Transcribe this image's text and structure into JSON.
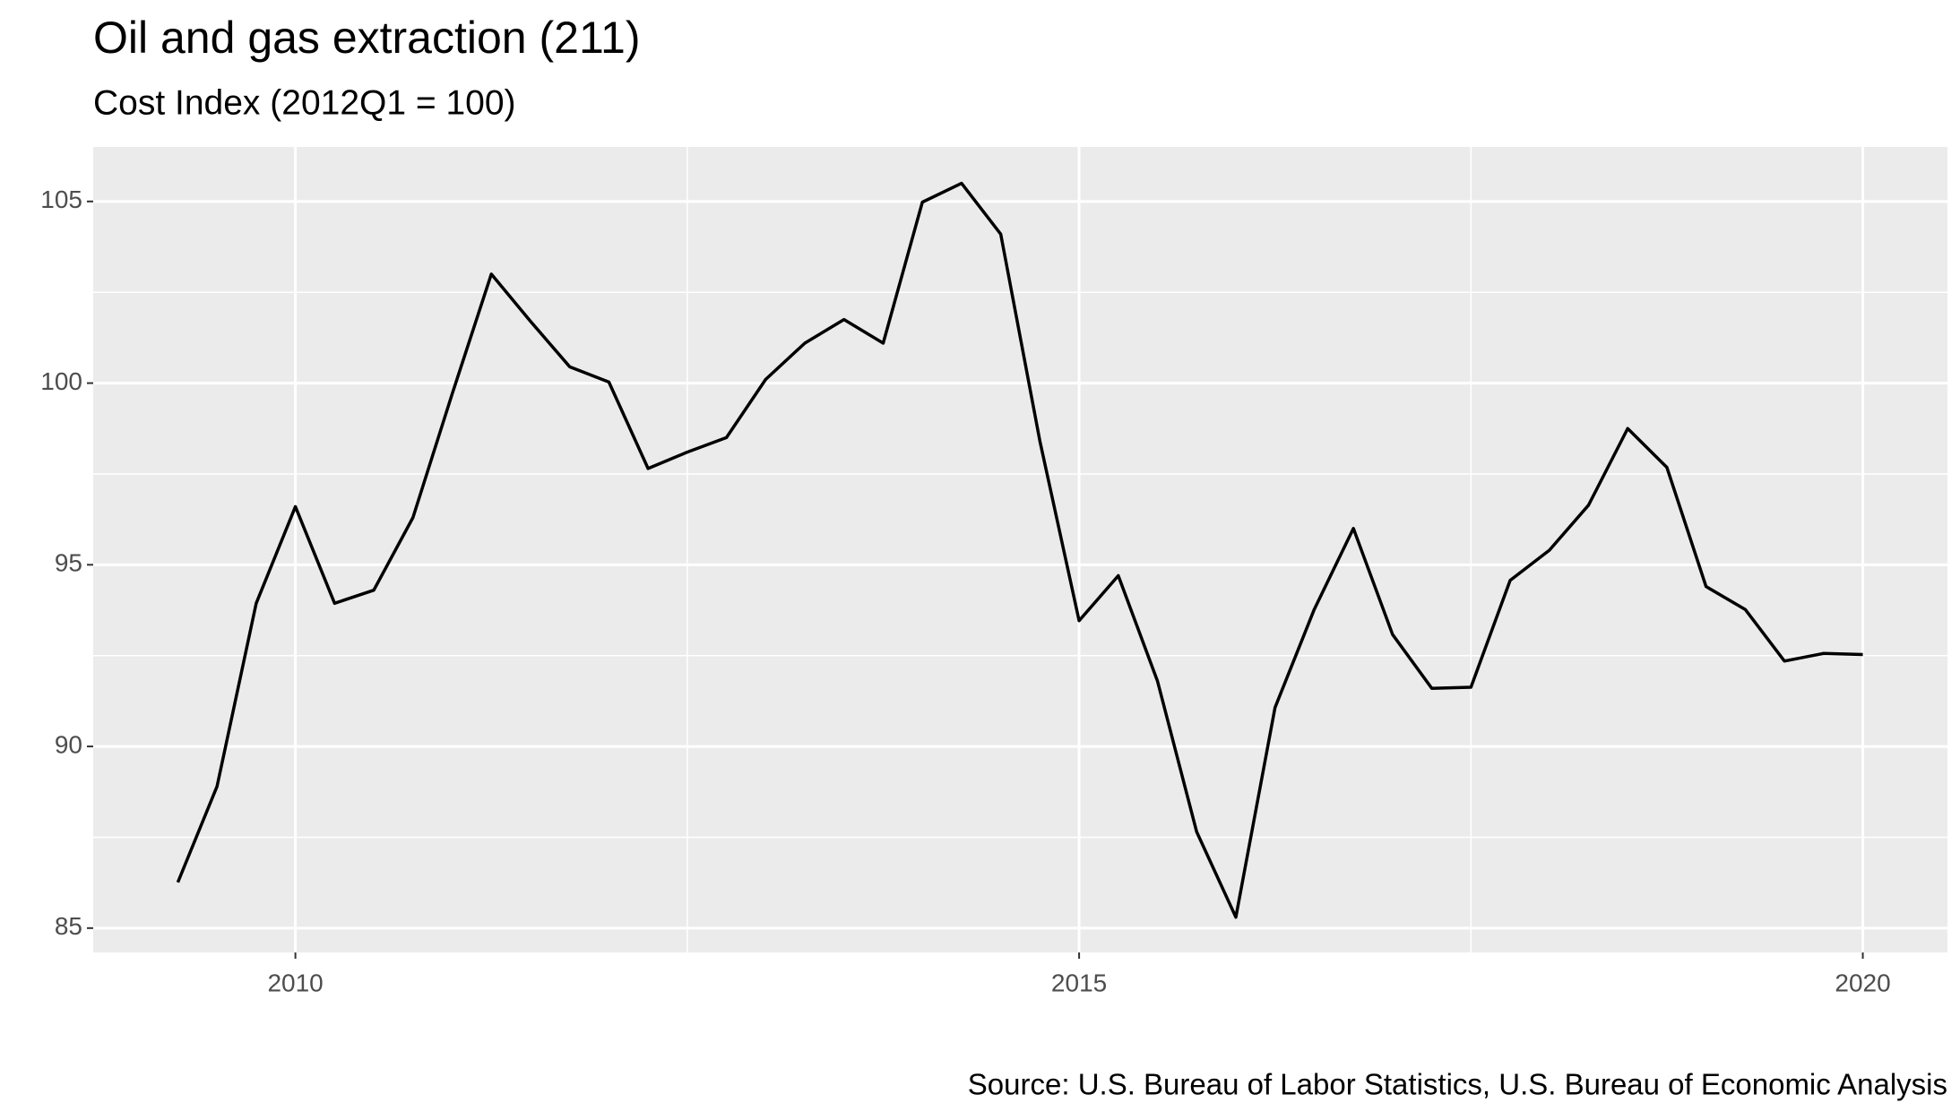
{
  "chart_data": {
    "type": "line",
    "title": "Oil and gas extraction (211)",
    "subtitle": "Cost Index (2012Q1 = 100)",
    "caption": "Source: U.S. Bureau of Labor Statistics, U.S. Bureau of Economic Analysis",
    "x": [
      2009.25,
      2009.5,
      2009.75,
      2010,
      2010.25,
      2010.5,
      2010.75,
      2011,
      2011.25,
      2011.5,
      2011.75,
      2012,
      2012.25,
      2012.5,
      2012.75,
      2013,
      2013.25,
      2013.5,
      2013.75,
      2014,
      2014.25,
      2014.5,
      2014.75,
      2015,
      2015.25,
      2015.5,
      2015.75,
      2016,
      2016.25,
      2016.5,
      2016.75,
      2017,
      2017.25,
      2017.5,
      2017.75,
      2018,
      2018.25,
      2018.5,
      2018.75,
      2019,
      2019.25,
      2019.5,
      2019.75,
      2020
    ],
    "series": [
      {
        "name": "Cost Index",
        "color": "#000000",
        "values": [
          86.26,
          88.9,
          93.94,
          96.6,
          93.94,
          94.3,
          96.3,
          99.7,
          103.0,
          101.7,
          100.45,
          100.03,
          97.65,
          98.1,
          98.5,
          100.1,
          101.1,
          101.75,
          101.1,
          104.98,
          105.5,
          104.1,
          98.4,
          93.46,
          94.7,
          91.8,
          87.65,
          85.3,
          91.07,
          93.77,
          96.0,
          93.08,
          91.6,
          91.63,
          94.57,
          95.4,
          96.64,
          98.75,
          97.68,
          94.4,
          93.77,
          92.35,
          92.56,
          92.53
        ]
      }
    ],
    "xlim": [
      2008.71,
      2020.54
    ],
    "xticks": [
      2010,
      2015,
      2020
    ],
    "ylim": [
      84.33,
      106.5
    ],
    "yticks": [
      85,
      90,
      95,
      100,
      105
    ],
    "grid": true
  }
}
